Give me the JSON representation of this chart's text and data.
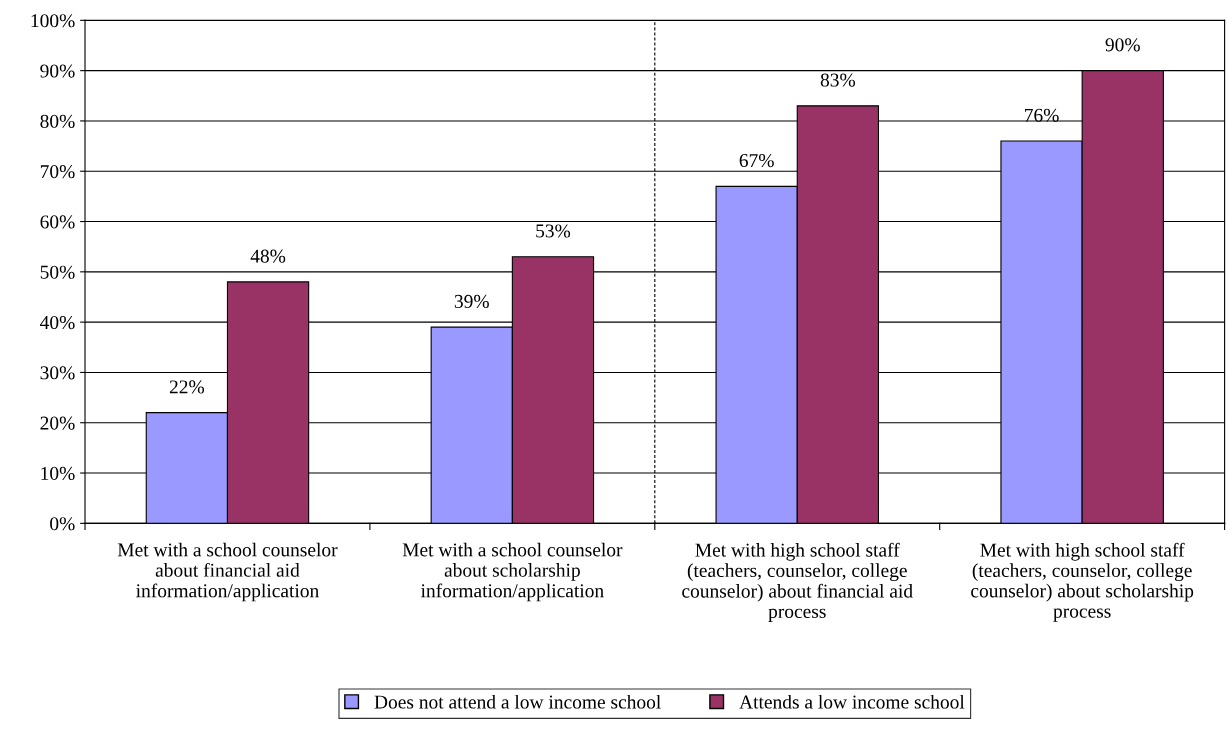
{
  "chart_data": {
    "type": "bar",
    "categories": [
      "Met with a school counselor\nabout financial aid\ninformation/application",
      "Met with a school counselor\nabout scholarship\ninformation/application",
      "Met with high school staff\n(teachers, counselor, college\ncounselor) about financial aid\nprocess",
      "Met with high school staff\n(teachers, counselor, college\ncounselor) about scholarship\nprocess"
    ],
    "series": [
      {
        "name": "Does not attend a low income school",
        "color": "#9999ff",
        "values": [
          22,
          39,
          67,
          76
        ],
        "value_labels": [
          "22%",
          "39%",
          "67%",
          "76%"
        ]
      },
      {
        "name": "Attends a low income school",
        "color": "#993366",
        "values": [
          48,
          53,
          83,
          90
        ],
        "value_labels": [
          "48%",
          "53%",
          "83%",
          "90%"
        ]
      }
    ],
    "ylim": [
      0,
      100
    ],
    "yticks": [
      {
        "value": 0,
        "label": "0%"
      },
      {
        "value": 10,
        "label": "10%"
      },
      {
        "value": 20,
        "label": "20%"
      },
      {
        "value": 30,
        "label": "30%"
      },
      {
        "value": 40,
        "label": "40%"
      },
      {
        "value": 50,
        "label": "50%"
      },
      {
        "value": 60,
        "label": "60%"
      },
      {
        "value": 70,
        "label": "70%"
      },
      {
        "value": 80,
        "label": "80%"
      },
      {
        "value": 90,
        "label": "90%"
      },
      {
        "value": 100,
        "label": "100%"
      }
    ],
    "grid": "y",
    "legend": "bottom"
  }
}
